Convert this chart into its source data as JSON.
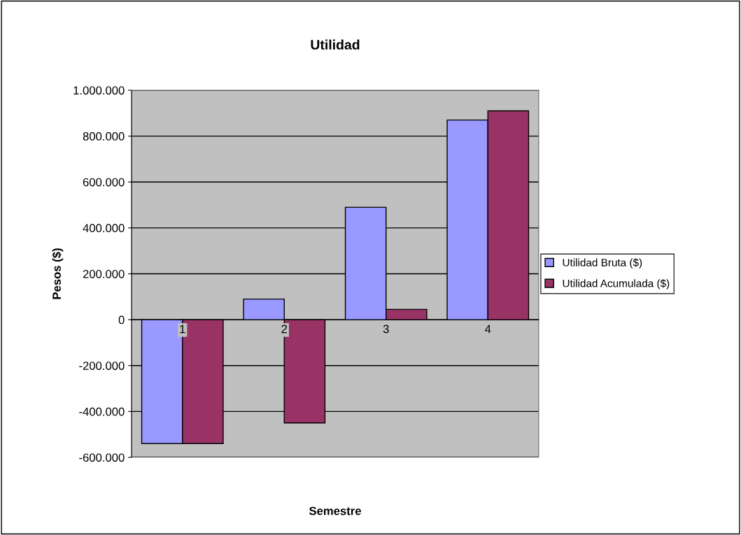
{
  "chart_data": {
    "type": "bar",
    "title": "Utilidad",
    "xlabel": "Semestre",
    "ylabel": "Pesos ($)",
    "categories": [
      "1",
      "2",
      "3",
      "4"
    ],
    "series": [
      {
        "name": "Utilidad Bruta ($)",
        "color": "#9999ff",
        "values": [
          -540000,
          90000,
          490000,
          870000
        ]
      },
      {
        "name": "Utilidad Acumulada ($)",
        "color": "#993366",
        "values": [
          -540000,
          -450000,
          45000,
          910000
        ]
      }
    ],
    "ylim": [
      -600000,
      1000000
    ],
    "yticks": [
      {
        "value": -600000,
        "label": "-600.000"
      },
      {
        "value": -400000,
        "label": "-400.000"
      },
      {
        "value": -200000,
        "label": "-200.000"
      },
      0,
      {
        "value": 200000,
        "label": "200.000"
      },
      {
        "value": 400000,
        "label": "400.000"
      },
      {
        "value": 600000,
        "label": "600.000"
      },
      {
        "value": 800000,
        "label": "800.000"
      },
      {
        "value": 1000000,
        "label": "1.000.000"
      }
    ],
    "grid": "y",
    "legend": "right"
  }
}
